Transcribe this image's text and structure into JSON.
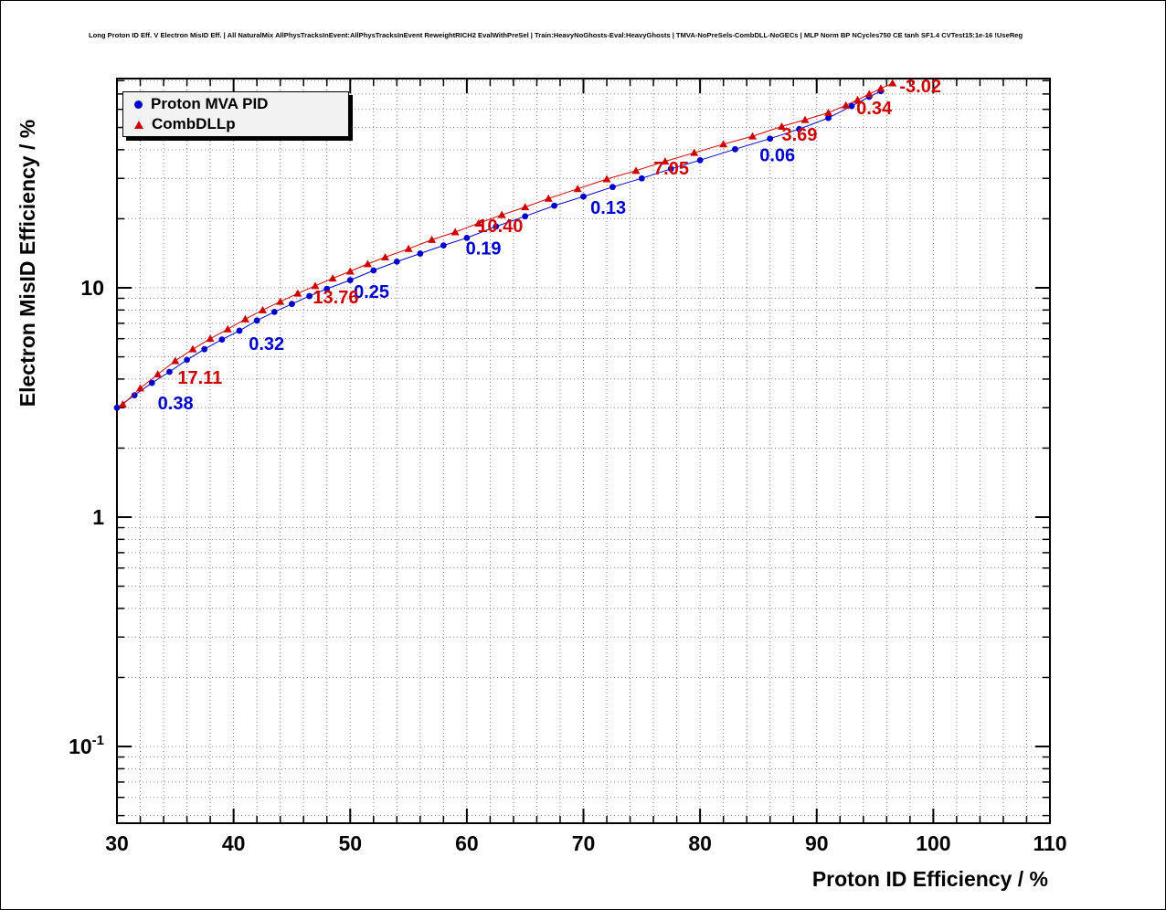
{
  "page_title": "Long Proton ID Eff. V Electron MisID Eff. | All NaturalMix AllPhysTracksInEvent:AllPhysTracksInEvent ReweightRICH2 EvalWithPreSel | Train:HeavyNoGhosts-Eval:HeavyGhosts | TMVA-NoPreSels-CombDLL-NoGECs | MLP Norm BP NCycles750 CE tanh SF1.4 CVTest15:1e-16 !UseReg",
  "chart_data": {
    "type": "scatter",
    "title": "Long Proton ID Eff. V Electron MisID Eff.",
    "xlabel": "Proton ID Efficiency / %",
    "ylabel": "Electron MisID Efficiency / %",
    "xlim": [
      30,
      110
    ],
    "ylim": [
      0.0463,
      81.7
    ],
    "y_scale": "log",
    "grid": true,
    "x_major_ticks": [
      30,
      40,
      50,
      60,
      70,
      80,
      90,
      100,
      110
    ],
    "x_tick_labels": [
      "30",
      "40",
      "50",
      "60",
      "70",
      "80",
      "90",
      "100",
      "110"
    ],
    "x_minor_step": 2,
    "y_tick_labels": [
      {
        "value": 0.1,
        "base": "10",
        "exp": "-1"
      },
      {
        "value": 1,
        "base": "1",
        "exp": ""
      },
      {
        "value": 10,
        "base": "10",
        "exp": ""
      }
    ],
    "legend": {
      "position": "top-left",
      "entries": [
        {
          "label": "Proton MVA PID",
          "marker": "circle",
          "color": "#0000cc"
        },
        {
          "label": "CombDLLp",
          "marker": "triangle",
          "color": "#cc0000"
        }
      ]
    },
    "series": [
      {
        "name": "Proton MVA PID",
        "marker": "circle",
        "color": "#0000cc",
        "points": [
          [
            30,
            3.0
          ],
          [
            31.5,
            3.4
          ],
          [
            33,
            3.85
          ],
          [
            34.5,
            4.3
          ],
          [
            36,
            4.85
          ],
          [
            37.5,
            5.4
          ],
          [
            39,
            5.95
          ],
          [
            40.5,
            6.5
          ],
          [
            42,
            7.2
          ],
          [
            43.5,
            7.85
          ],
          [
            45,
            8.5
          ],
          [
            46.5,
            9.2
          ],
          [
            48,
            9.9
          ],
          [
            50,
            10.8
          ],
          [
            52,
            11.9
          ],
          [
            54,
            13.0
          ],
          [
            56,
            14.1
          ],
          [
            58,
            15.3
          ],
          [
            60,
            16.5
          ],
          [
            62.5,
            18.5
          ],
          [
            65,
            20.5
          ],
          [
            67.5,
            22.8
          ],
          [
            70,
            25.0
          ],
          [
            72.5,
            27.5
          ],
          [
            75,
            30.0
          ],
          [
            77.5,
            33.0
          ],
          [
            80,
            36.0
          ],
          [
            83,
            40.2
          ],
          [
            86,
            44.7
          ],
          [
            88.5,
            49.2
          ],
          [
            91,
            55.0
          ],
          [
            93,
            62.0
          ],
          [
            94.5,
            68.0
          ],
          [
            95.5,
            72.0
          ]
        ]
      },
      {
        "name": "CombDLLp",
        "marker": "triangle",
        "color": "#cc0000",
        "points": [
          [
            30.5,
            3.1
          ],
          [
            32,
            3.65
          ],
          [
            33.5,
            4.2
          ],
          [
            35,
            4.8
          ],
          [
            36.5,
            5.4
          ],
          [
            38,
            6.0
          ],
          [
            39.5,
            6.6
          ],
          [
            41,
            7.3
          ],
          [
            42.5,
            8.0
          ],
          [
            44,
            8.7
          ],
          [
            45.5,
            9.45
          ],
          [
            47,
            10.2
          ],
          [
            48.5,
            11.0
          ],
          [
            50,
            11.8
          ],
          [
            51.5,
            12.7
          ],
          [
            53,
            13.6
          ],
          [
            55,
            14.8
          ],
          [
            57,
            16.2
          ],
          [
            59,
            17.5
          ],
          [
            61,
            19.1
          ],
          [
            63,
            20.8
          ],
          [
            65,
            22.5
          ],
          [
            67,
            24.5
          ],
          [
            69.5,
            27.0
          ],
          [
            72,
            29.8
          ],
          [
            74.5,
            32.4
          ],
          [
            77,
            35.6
          ],
          [
            79.5,
            38.8
          ],
          [
            82,
            42.3
          ],
          [
            84.5,
            45.8
          ],
          [
            87,
            50.5
          ],
          [
            89,
            54.0
          ],
          [
            91,
            58.0
          ],
          [
            92.5,
            62.5
          ],
          [
            93.5,
            66.0
          ],
          [
            94.5,
            70.0
          ],
          [
            95.5,
            74.0
          ],
          [
            96.5,
            78.0
          ]
        ]
      }
    ],
    "annotations": [
      {
        "text": "0.38",
        "x": 33.5,
        "y": 2.95,
        "color": "#0000cc"
      },
      {
        "text": "0.32",
        "x": 41.3,
        "y": 5.36,
        "color": "#0000cc"
      },
      {
        "text": "0.25",
        "x": 50.3,
        "y": 9.04,
        "color": "#0000cc"
      },
      {
        "text": "0.19",
        "x": 59.9,
        "y": 14.0,
        "color": "#0000cc"
      },
      {
        "text": "0.13",
        "x": 70.6,
        "y": 21.0,
        "color": "#0000cc"
      },
      {
        "text": "0.06",
        "x": 85.1,
        "y": 35.7,
        "color": "#0000cc"
      },
      {
        "text": "17.11",
        "x": 35.2,
        "y": 3.82,
        "color": "#cc0000"
      },
      {
        "text": "13.76",
        "x": 46.8,
        "y": 8.55,
        "color": "#cc0000"
      },
      {
        "text": "10.40",
        "x": 60.9,
        "y": 17.5,
        "color": "#cc0000"
      },
      {
        "text": "7.05",
        "x": 76.0,
        "y": 31.2,
        "color": "#cc0000"
      },
      {
        "text": "3.69",
        "x": 87.0,
        "y": 43.8,
        "color": "#cc0000"
      },
      {
        "text": "0.34",
        "x": 93.4,
        "y": 57.0,
        "color": "#cc0000"
      },
      {
        "text": "-3.02",
        "x": 97.1,
        "y": 71.1,
        "color": "#cc0000"
      }
    ],
    "style": {
      "grid_color": "#888888",
      "frame_color": "#000000",
      "text_color": "#000000"
    }
  }
}
